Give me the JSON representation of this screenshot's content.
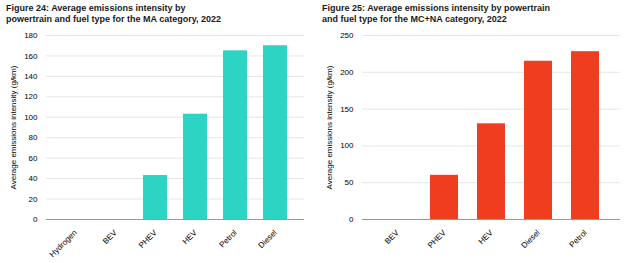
{
  "chart_data": [
    {
      "type": "bar",
      "title": "Figure 24: Average emissions intensity by\npowertrain and fuel type for the MA category, 2022",
      "categories": [
        "Hydrogen",
        "BEV",
        "PHEV",
        "HEV",
        "Petrol",
        "Diesel"
      ],
      "values": [
        0,
        0,
        43,
        103,
        165,
        170
      ],
      "color": "#2dd4c4",
      "ylabel": "Average emissions intensity (g/km)",
      "ylim": [
        0,
        180
      ],
      "yticks": [
        0,
        20,
        40,
        60,
        80,
        100,
        120,
        140,
        160,
        180
      ],
      "grid": true
    },
    {
      "type": "bar",
      "title": "Figure 25: Average emissions intensity by powertrain\nand fuel type for the MC+NA category, 2022",
      "categories": [
        "BEV",
        "PHEV",
        "HEV",
        "Diesel",
        "Petrol"
      ],
      "values": [
        0,
        60,
        130,
        215,
        228
      ],
      "color": "#f03c1f",
      "ylabel": "Average emissions intensity (g/km)",
      "ylim": [
        0,
        250
      ],
      "yticks": [
        0,
        50,
        100,
        150,
        200,
        250
      ],
      "grid": true
    }
  ]
}
